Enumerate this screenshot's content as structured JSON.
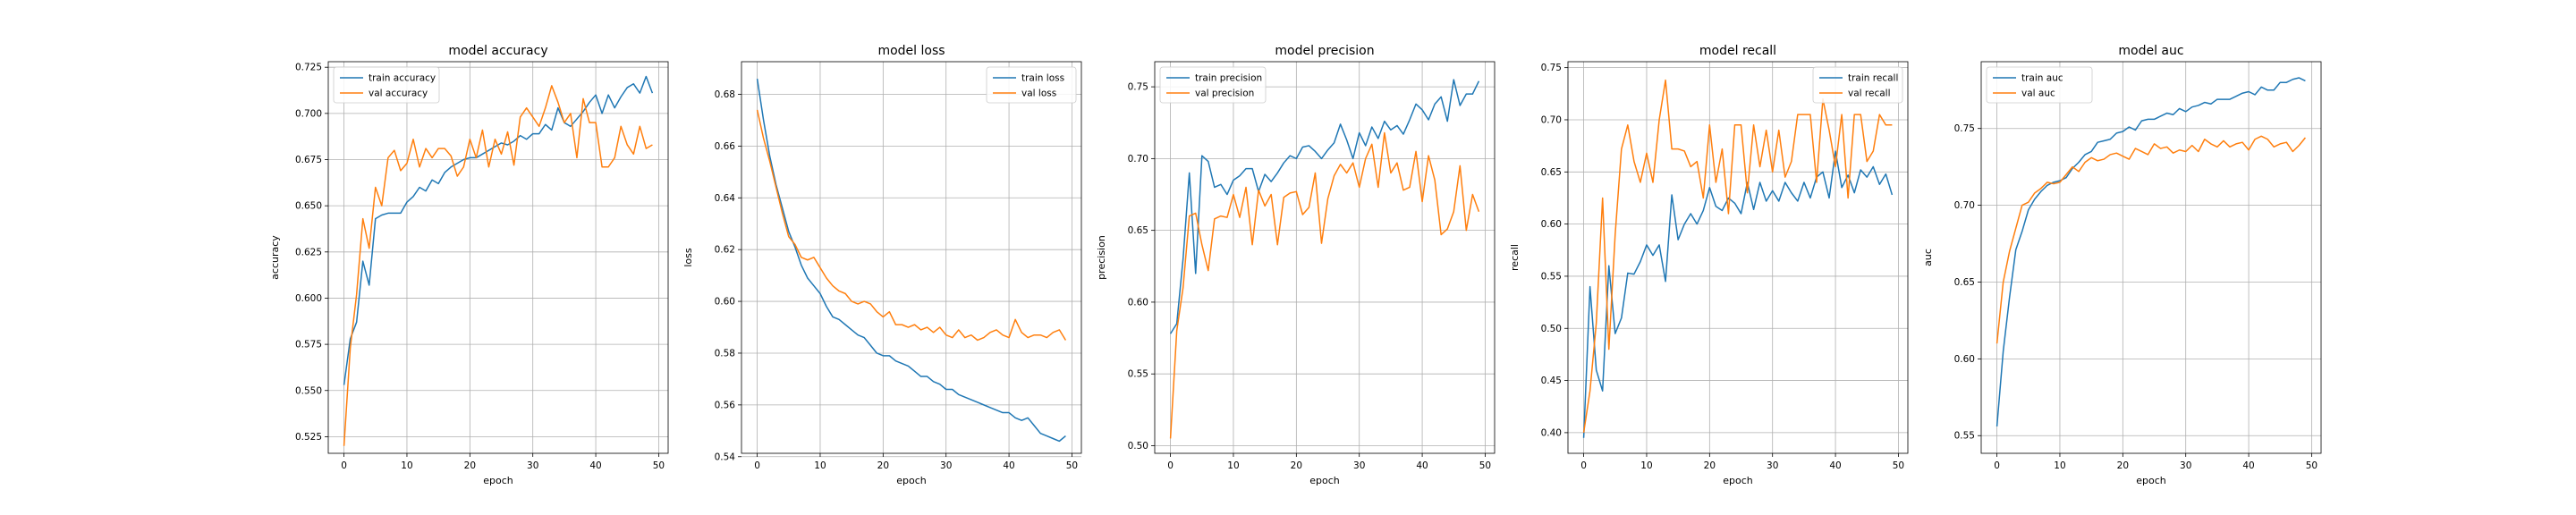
{
  "colors": {
    "train": "#1f77b4",
    "val": "#ff7f0e",
    "grid": "#b0b0b0",
    "frame": "#000000"
  },
  "chart_data": [
    {
      "type": "line",
      "title": "model accuracy",
      "xlabel": "epoch",
      "ylabel": "accuracy",
      "xlim": [
        -2.5,
        51.5
      ],
      "ylim": [
        0.516,
        0.728
      ],
      "xticks": [
        0,
        10,
        20,
        30,
        40,
        50
      ],
      "xtick_labels": [
        "0",
        "10",
        "20",
        "30",
        "40",
        "50"
      ],
      "yticks": [
        0.525,
        0.55,
        0.575,
        0.6,
        0.625,
        0.65,
        0.675,
        0.7,
        0.725
      ],
      "ytick_labels": [
        "0.525",
        "0.550",
        "0.575",
        "0.600",
        "0.625",
        "0.650",
        "0.675",
        "0.700",
        "0.725"
      ],
      "grid": true,
      "legend_position": "upper-left",
      "series": [
        {
          "name": "train accuracy",
          "color": "#1f77b4",
          "values": [
            0.553,
            0.578,
            0.587,
            0.62,
            0.607,
            0.643,
            0.645,
            0.646,
            0.646,
            0.646,
            0.652,
            0.655,
            0.66,
            0.658,
            0.664,
            0.662,
            0.668,
            0.671,
            0.673,
            0.675,
            0.676,
            0.676,
            0.678,
            0.68,
            0.682,
            0.684,
            0.683,
            0.685,
            0.688,
            0.686,
            0.689,
            0.689,
            0.694,
            0.691,
            0.703,
            0.695,
            0.693,
            0.697,
            0.701,
            0.706,
            0.71,
            0.7,
            0.71,
            0.703,
            0.709,
            0.714,
            0.716,
            0.711,
            0.72,
            0.711
          ]
        },
        {
          "name": "val accuracy",
          "color": "#ff7f0e",
          "values": [
            0.52,
            0.573,
            0.602,
            0.643,
            0.627,
            0.66,
            0.65,
            0.676,
            0.68,
            0.669,
            0.673,
            0.686,
            0.671,
            0.681,
            0.676,
            0.681,
            0.681,
            0.677,
            0.666,
            0.671,
            0.686,
            0.676,
            0.691,
            0.671,
            0.686,
            0.678,
            0.69,
            0.672,
            0.698,
            0.703,
            0.698,
            0.693,
            0.703,
            0.715,
            0.706,
            0.695,
            0.7,
            0.676,
            0.708,
            0.695,
            0.695,
            0.671,
            0.671,
            0.676,
            0.693,
            0.683,
            0.678,
            0.693,
            0.681,
            0.683
          ]
        }
      ]
    },
    {
      "type": "line",
      "title": "model loss",
      "xlabel": "epoch",
      "ylabel": "loss",
      "xlim": [
        -2.5,
        51.5
      ],
      "ylim": [
        0.5413,
        0.6926
      ],
      "xticks": [
        0,
        10,
        20,
        30,
        40,
        50
      ],
      "xtick_labels": [
        "0",
        "10",
        "20",
        "30",
        "40",
        "50"
      ],
      "yticks": [
        0.54,
        0.56,
        0.58,
        0.6,
        0.62,
        0.64,
        0.66,
        0.68
      ],
      "ytick_labels": [
        "0.54",
        "0.56",
        "0.58",
        "0.60",
        "0.62",
        "0.64",
        "0.66",
        "0.68"
      ],
      "grid": true,
      "legend_position": "upper-right",
      "series": [
        {
          "name": "train loss",
          "color": "#1f77b4",
          "values": [
            0.686,
            0.67,
            0.656,
            0.645,
            0.636,
            0.627,
            0.621,
            0.614,
            0.609,
            0.606,
            0.603,
            0.598,
            0.594,
            0.593,
            0.591,
            0.589,
            0.587,
            0.586,
            0.583,
            0.58,
            0.579,
            0.579,
            0.577,
            0.576,
            0.575,
            0.573,
            0.571,
            0.571,
            0.569,
            0.568,
            0.566,
            0.566,
            0.564,
            0.563,
            0.562,
            0.561,
            0.56,
            0.559,
            0.558,
            0.557,
            0.557,
            0.555,
            0.554,
            0.555,
            0.552,
            0.549,
            0.548,
            0.547,
            0.546,
            0.548
          ]
        },
        {
          "name": "val loss",
          "color": "#ff7f0e",
          "values": [
            0.674,
            0.663,
            0.654,
            0.644,
            0.634,
            0.625,
            0.622,
            0.617,
            0.616,
            0.617,
            0.613,
            0.609,
            0.606,
            0.604,
            0.603,
            0.6,
            0.599,
            0.6,
            0.599,
            0.596,
            0.594,
            0.596,
            0.591,
            0.591,
            0.59,
            0.591,
            0.589,
            0.59,
            0.588,
            0.59,
            0.587,
            0.586,
            0.589,
            0.586,
            0.587,
            0.585,
            0.586,
            0.588,
            0.589,
            0.587,
            0.586,
            0.593,
            0.588,
            0.586,
            0.587,
            0.587,
            0.586,
            0.588,
            0.589,
            0.585
          ]
        }
      ]
    },
    {
      "type": "line",
      "title": "model precision",
      "xlabel": "epoch",
      "ylabel": "precision",
      "xlim": [
        -2.5,
        51.5
      ],
      "ylim": [
        0.4947,
        0.7675
      ],
      "xticks": [
        0,
        10,
        20,
        30,
        40,
        50
      ],
      "xtick_labels": [
        "0",
        "10",
        "20",
        "30",
        "40",
        "50"
      ],
      "yticks": [
        0.5,
        0.55,
        0.6,
        0.65,
        0.7,
        0.75
      ],
      "ytick_labels": [
        "0.50",
        "0.55",
        "0.60",
        "0.65",
        "0.70",
        "0.75"
      ],
      "grid": true,
      "legend_position": "upper-left",
      "series": [
        {
          "name": "train precision",
          "color": "#1f77b4",
          "values": [
            0.578,
            0.585,
            0.63,
            0.69,
            0.62,
            0.702,
            0.698,
            0.68,
            0.682,
            0.675,
            0.685,
            0.688,
            0.693,
            0.693,
            0.677,
            0.689,
            0.684,
            0.69,
            0.697,
            0.702,
            0.7,
            0.708,
            0.709,
            0.705,
            0.7,
            0.706,
            0.711,
            0.724,
            0.713,
            0.7,
            0.718,
            0.709,
            0.722,
            0.714,
            0.726,
            0.72,
            0.723,
            0.717,
            0.727,
            0.738,
            0.734,
            0.727,
            0.738,
            0.743,
            0.726,
            0.755,
            0.737,
            0.745,
            0.745,
            0.754
          ]
        },
        {
          "name": "val precision",
          "color": "#ff7f0e",
          "values": [
            0.505,
            0.58,
            0.61,
            0.66,
            0.662,
            0.64,
            0.622,
            0.658,
            0.66,
            0.659,
            0.675,
            0.659,
            0.68,
            0.64,
            0.678,
            0.667,
            0.675,
            0.64,
            0.673,
            0.676,
            0.677,
            0.661,
            0.666,
            0.69,
            0.641,
            0.672,
            0.688,
            0.696,
            0.69,
            0.697,
            0.68,
            0.7,
            0.71,
            0.68,
            0.718,
            0.69,
            0.697,
            0.678,
            0.68,
            0.705,
            0.67,
            0.702,
            0.685,
            0.647,
            0.651,
            0.663,
            0.695,
            0.65,
            0.675,
            0.663
          ]
        }
      ]
    },
    {
      "type": "line",
      "title": "model recall",
      "xlabel": "epoch",
      "ylabel": "recall",
      "xlim": [
        -2.5,
        51.5
      ],
      "ylim": [
        0.3802,
        0.7557
      ],
      "xticks": [
        0,
        10,
        20,
        30,
        40,
        50
      ],
      "xtick_labels": [
        "0",
        "10",
        "20",
        "30",
        "40",
        "50"
      ],
      "yticks": [
        0.4,
        0.45,
        0.5,
        0.55,
        0.6,
        0.65,
        0.7,
        0.75
      ],
      "ytick_labels": [
        "0.40",
        "0.45",
        "0.50",
        "0.55",
        "0.60",
        "0.65",
        "0.70",
        "0.75"
      ],
      "grid": true,
      "legend_position": "upper-right",
      "series": [
        {
          "name": "train recall",
          "color": "#1f77b4",
          "values": [
            0.395,
            0.54,
            0.46,
            0.44,
            0.56,
            0.495,
            0.51,
            0.553,
            0.552,
            0.564,
            0.58,
            0.57,
            0.58,
            0.545,
            0.628,
            0.585,
            0.6,
            0.61,
            0.6,
            0.613,
            0.635,
            0.617,
            0.613,
            0.625,
            0.62,
            0.61,
            0.64,
            0.614,
            0.64,
            0.622,
            0.632,
            0.622,
            0.64,
            0.63,
            0.622,
            0.64,
            0.625,
            0.645,
            0.65,
            0.625,
            0.67,
            0.635,
            0.647,
            0.63,
            0.652,
            0.645,
            0.655,
            0.638,
            0.648,
            0.628
          ]
        },
        {
          "name": "val recall",
          "color": "#ff7f0e",
          "values": [
            0.4,
            0.44,
            0.505,
            0.625,
            0.48,
            0.59,
            0.672,
            0.695,
            0.66,
            0.64,
            0.668,
            0.64,
            0.7,
            0.738,
            0.672,
            0.672,
            0.67,
            0.655,
            0.66,
            0.625,
            0.695,
            0.64,
            0.672,
            0.61,
            0.695,
            0.695,
            0.63,
            0.695,
            0.655,
            0.69,
            0.65,
            0.69,
            0.645,
            0.66,
            0.705,
            0.705,
            0.705,
            0.64,
            0.72,
            0.69,
            0.655,
            0.705,
            0.625,
            0.705,
            0.705,
            0.66,
            0.67,
            0.705,
            0.695,
            0.695
          ]
        }
      ]
    },
    {
      "type": "line",
      "title": "model auc",
      "xlabel": "epoch",
      "ylabel": "auc",
      "xlim": [
        -2.5,
        51.5
      ],
      "ylim": [
        0.5385,
        0.7935
      ],
      "xticks": [
        0,
        10,
        20,
        30,
        40,
        50
      ],
      "xtick_labels": [
        "0",
        "10",
        "20",
        "30",
        "40",
        "50"
      ],
      "yticks": [
        0.55,
        0.6,
        0.65,
        0.7,
        0.75
      ],
      "ytick_labels": [
        "0.55",
        "0.60",
        "0.65",
        "0.70",
        "0.75"
      ],
      "grid": true,
      "legend_position": "upper-left",
      "series": [
        {
          "name": "train auc",
          "color": "#1f77b4",
          "values": [
            0.556,
            0.605,
            0.64,
            0.671,
            0.683,
            0.697,
            0.704,
            0.709,
            0.713,
            0.715,
            0.716,
            0.718,
            0.724,
            0.728,
            0.733,
            0.735,
            0.741,
            0.742,
            0.743,
            0.747,
            0.748,
            0.751,
            0.749,
            0.755,
            0.756,
            0.756,
            0.758,
            0.76,
            0.759,
            0.763,
            0.761,
            0.764,
            0.765,
            0.767,
            0.766,
            0.769,
            0.769,
            0.769,
            0.771,
            0.773,
            0.774,
            0.772,
            0.777,
            0.775,
            0.775,
            0.78,
            0.78,
            0.782,
            0.783,
            0.781
          ]
        },
        {
          "name": "val auc",
          "color": "#ff7f0e",
          "values": [
            0.61,
            0.65,
            0.67,
            0.685,
            0.7,
            0.702,
            0.708,
            0.711,
            0.715,
            0.714,
            0.715,
            0.72,
            0.725,
            0.722,
            0.728,
            0.731,
            0.729,
            0.73,
            0.733,
            0.734,
            0.732,
            0.73,
            0.737,
            0.735,
            0.733,
            0.74,
            0.737,
            0.738,
            0.734,
            0.736,
            0.735,
            0.739,
            0.735,
            0.743,
            0.74,
            0.738,
            0.742,
            0.738,
            0.74,
            0.741,
            0.736,
            0.743,
            0.745,
            0.743,
            0.738,
            0.74,
            0.741,
            0.735,
            0.739,
            0.744
          ]
        }
      ]
    }
  ]
}
